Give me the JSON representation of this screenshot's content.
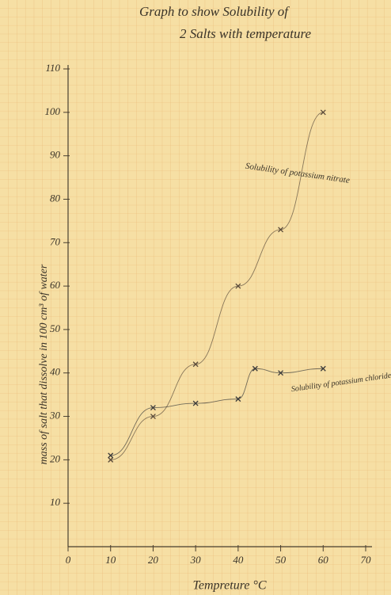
{
  "chart_data": {
    "type": "scatter",
    "title": "Graph to show Solubility of",
    "subtitle": "2 Salts with temperature",
    "x_label": "Tempreture °C",
    "y_label": "mass of salt that dissolve in 100 cm³ of water",
    "annotations": [
      "Solubility of potassium nitrate",
      "Solubility of potassium chloride"
    ],
    "series": [
      {
        "name": "potassium nitrate",
        "color": "#5a4a3a",
        "x": [
          10,
          20,
          30,
          40,
          50,
          60
        ],
        "values": [
          20,
          30,
          42,
          60,
          73,
          100
        ]
      },
      {
        "name": "potassium chloride",
        "color": "#3a3a3a",
        "x": [
          10,
          20,
          30,
          40,
          44,
          50,
          60
        ],
        "values": [
          21,
          32,
          33,
          34,
          41,
          40,
          41
        ]
      }
    ],
    "xlim": [
      0,
      70
    ],
    "ylim": [
      0,
      110
    ],
    "xticks": [
      0,
      10,
      20,
      30,
      40,
      50,
      60,
      70
    ],
    "yticks": [
      10,
      20,
      30,
      40,
      50,
      60,
      70,
      80,
      90,
      100,
      110
    ],
    "grid": true
  }
}
